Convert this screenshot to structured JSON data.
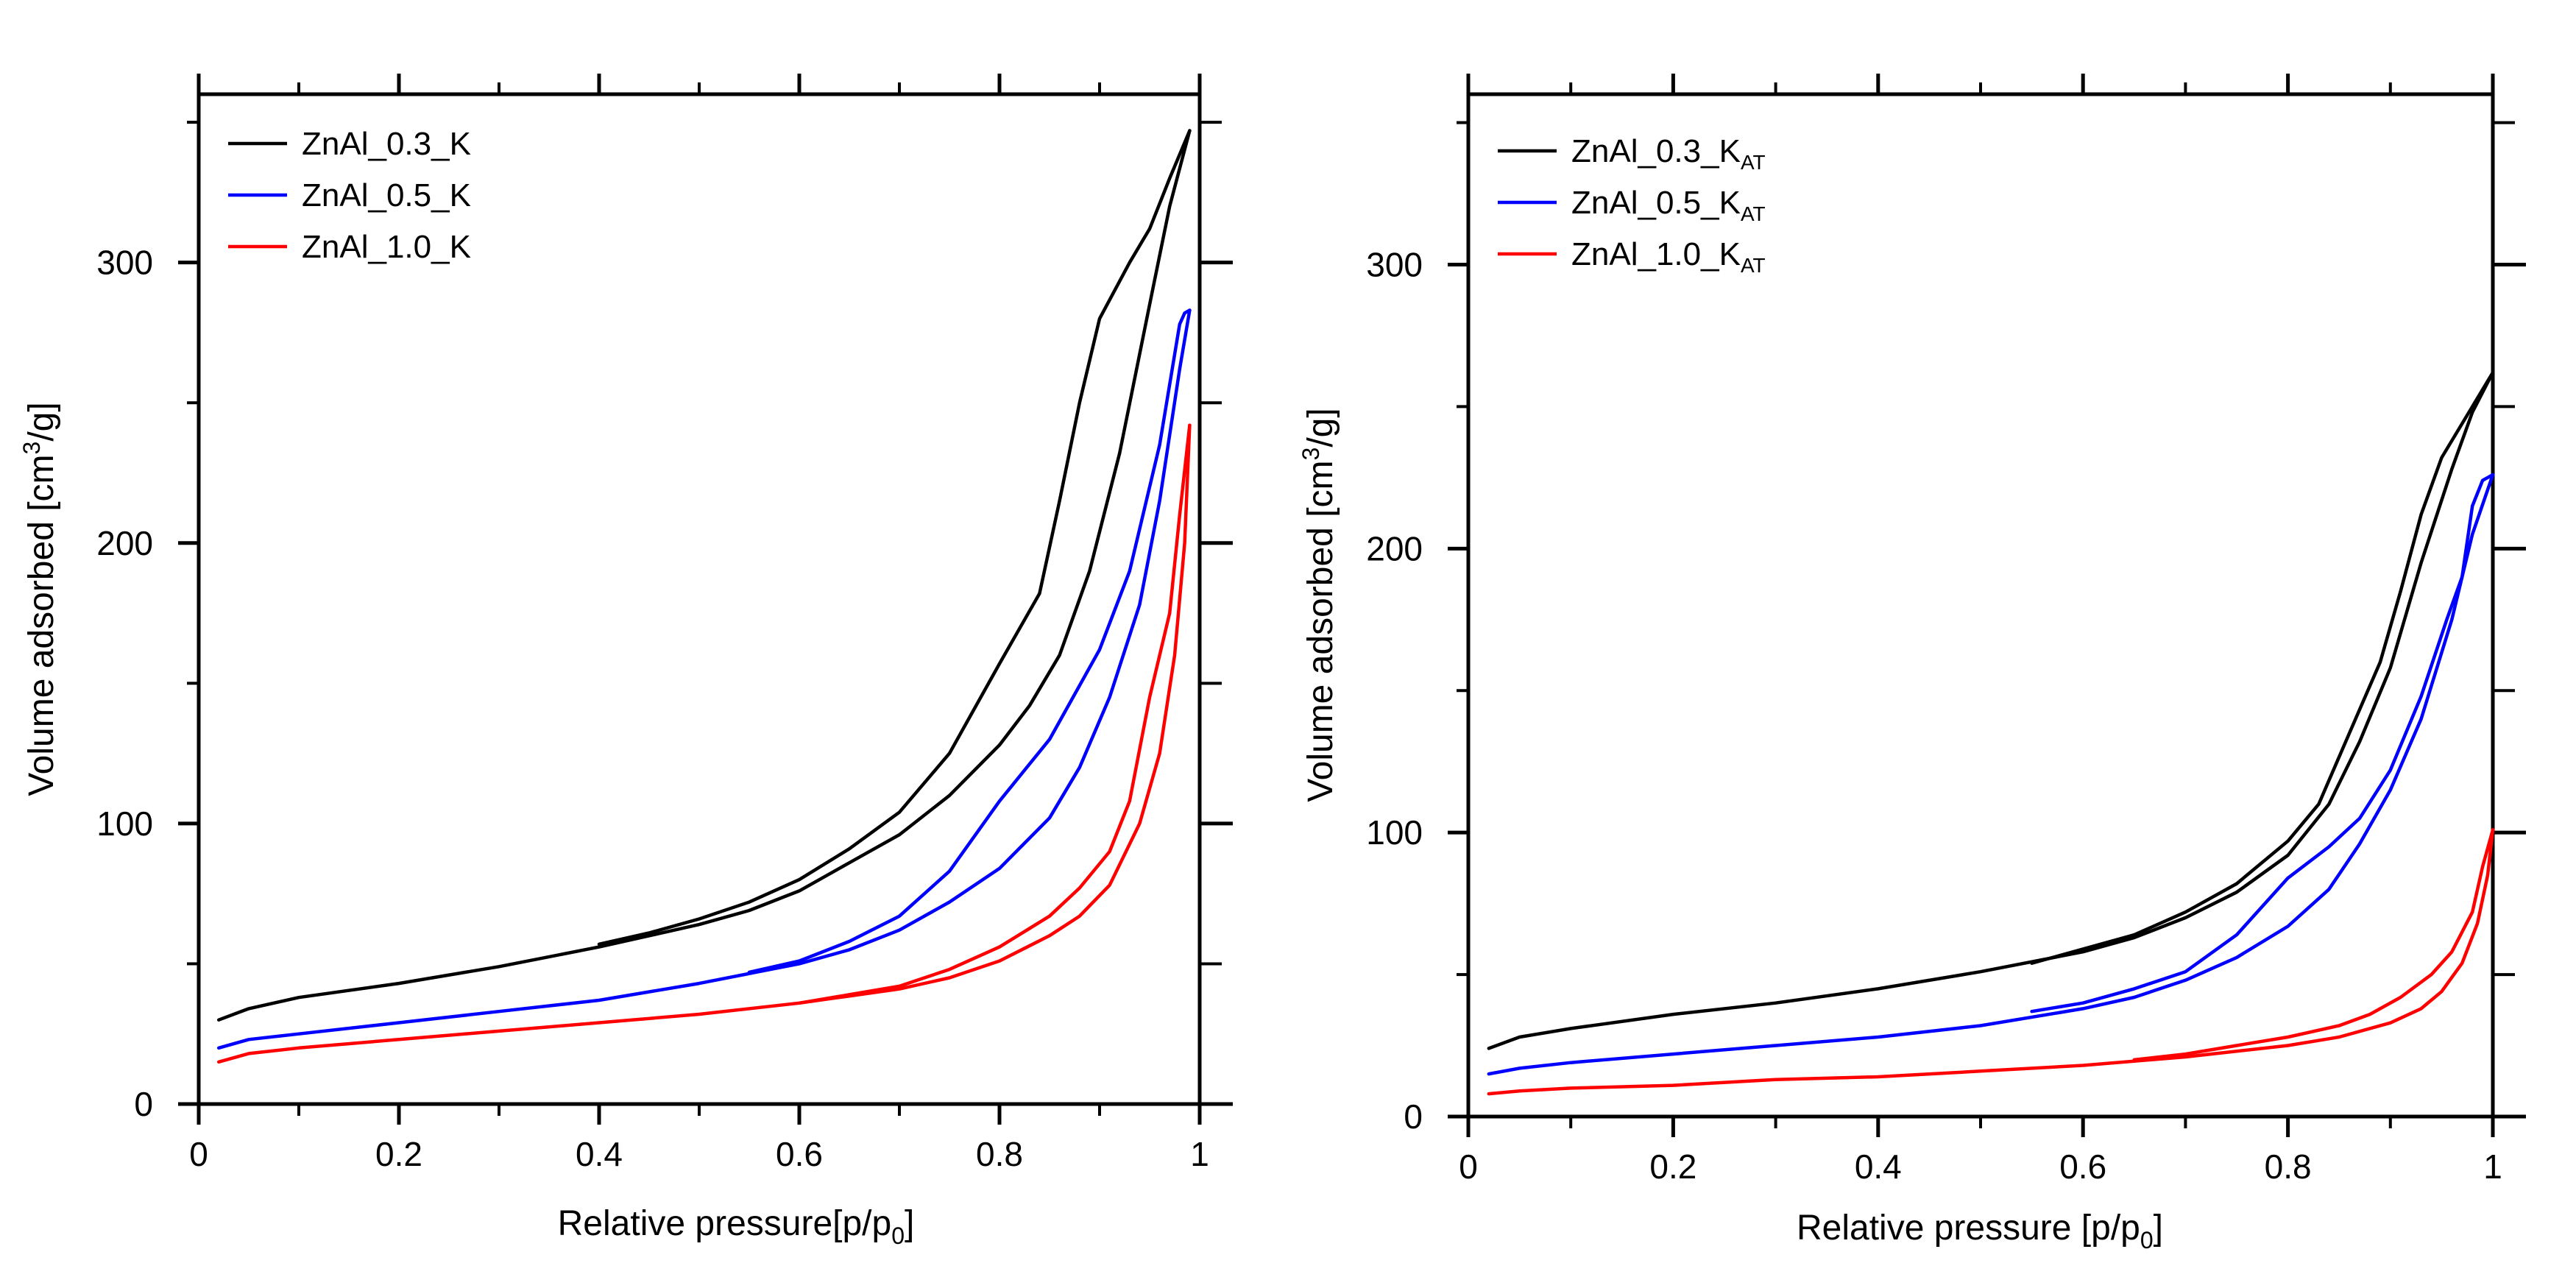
{
  "chart_data": [
    {
      "type": "line",
      "xlabel": "Relative pressure[p/p0]",
      "xlabel_main": "Relative pressure[p/p",
      "xlabel_sub": "0",
      "xlabel_tail": "]",
      "ylabel": "Volume adsorbed [cm3/g]",
      "ylabel_main": "Volume adsorbed [cm",
      "ylabel_sup": "3",
      "ylabel_tail": "/g]",
      "xlim": [
        0,
        1
      ],
      "ylim": [
        0,
        360
      ],
      "xticks": [
        0,
        0.2,
        0.4,
        0.6,
        0.8,
        1
      ],
      "xtick_labels": [
        "0",
        "0.2",
        "0.4",
        "0.6",
        "0.8",
        "1"
      ],
      "yticks": [
        0,
        100,
        200,
        300
      ],
      "ytick_labels": [
        "0",
        "100",
        "200",
        "300"
      ],
      "legend_position": "top-left",
      "series": [
        {
          "name": "ZnAl_0.3_K",
          "label_main": "ZnAl_0.3_K",
          "label_sub": "",
          "color": "#000000",
          "adsorption": [
            [
              0.02,
              30
            ],
            [
              0.05,
              34
            ],
            [
              0.1,
              38
            ],
            [
              0.2,
              43
            ],
            [
              0.3,
              49
            ],
            [
              0.4,
              56
            ],
            [
              0.5,
              64
            ],
            [
              0.55,
              69
            ],
            [
              0.6,
              76
            ],
            [
              0.65,
              86
            ],
            [
              0.7,
              96
            ],
            [
              0.75,
              110
            ],
            [
              0.8,
              128
            ],
            [
              0.83,
              142
            ],
            [
              0.86,
              160
            ],
            [
              0.89,
              190
            ],
            [
              0.92,
              232
            ],
            [
              0.95,
              285
            ],
            [
              0.97,
              320
            ],
            [
              0.99,
              347
            ]
          ],
          "desorption": [
            [
              0.99,
              347
            ],
            [
              0.97,
              330
            ],
            [
              0.95,
              312
            ],
            [
              0.93,
              300
            ],
            [
              0.9,
              280
            ],
            [
              0.88,
              250
            ],
            [
              0.86,
              215
            ],
            [
              0.84,
              182
            ],
            [
              0.8,
              157
            ],
            [
              0.75,
              125
            ],
            [
              0.7,
              104
            ],
            [
              0.65,
              91
            ],
            [
              0.6,
              80
            ],
            [
              0.55,
              72
            ],
            [
              0.5,
              66
            ],
            [
              0.45,
              61
            ],
            [
              0.4,
              57
            ]
          ]
        },
        {
          "name": "ZnAl_0.5_K",
          "label_main": "ZnAl_0.5_K",
          "label_sub": "",
          "color": "#0000ff",
          "adsorption": [
            [
              0.02,
              20
            ],
            [
              0.05,
              23
            ],
            [
              0.1,
              25
            ],
            [
              0.2,
              29
            ],
            [
              0.3,
              33
            ],
            [
              0.4,
              37
            ],
            [
              0.5,
              43
            ],
            [
              0.6,
              50
            ],
            [
              0.65,
              55
            ],
            [
              0.7,
              62
            ],
            [
              0.75,
              72
            ],
            [
              0.8,
              84
            ],
            [
              0.85,
              102
            ],
            [
              0.88,
              120
            ],
            [
              0.91,
              145
            ],
            [
              0.94,
              178
            ],
            [
              0.96,
              215
            ],
            [
              0.98,
              262
            ],
            [
              0.99,
              283
            ]
          ],
          "desorption": [
            [
              0.99,
              283
            ],
            [
              0.985,
              282
            ],
            [
              0.98,
              278
            ],
            [
              0.96,
              235
            ],
            [
              0.93,
              190
            ],
            [
              0.9,
              162
            ],
            [
              0.85,
              130
            ],
            [
              0.8,
              108
            ],
            [
              0.75,
              83
            ],
            [
              0.7,
              67
            ],
            [
              0.65,
              58
            ],
            [
              0.6,
              51
            ],
            [
              0.55,
              47
            ]
          ]
        },
        {
          "name": "ZnAl_1.0_K",
          "label_main": "ZnAl_1.0_K",
          "label_sub": "",
          "color": "#ff0000",
          "adsorption": [
            [
              0.02,
              15
            ],
            [
              0.05,
              18
            ],
            [
              0.1,
              20
            ],
            [
              0.2,
              23
            ],
            [
              0.3,
              26
            ],
            [
              0.4,
              29
            ],
            [
              0.5,
              32
            ],
            [
              0.6,
              36
            ],
            [
              0.7,
              41
            ],
            [
              0.75,
              45
            ],
            [
              0.8,
              51
            ],
            [
              0.85,
              60
            ],
            [
              0.88,
              67
            ],
            [
              0.91,
              78
            ],
            [
              0.94,
              100
            ],
            [
              0.96,
              125
            ],
            [
              0.975,
              160
            ],
            [
              0.985,
              200
            ],
            [
              0.99,
              242
            ]
          ],
          "desorption": [
            [
              0.99,
              242
            ],
            [
              0.98,
              210
            ],
            [
              0.97,
              175
            ],
            [
              0.95,
              145
            ],
            [
              0.93,
              108
            ],
            [
              0.91,
              90
            ],
            [
              0.88,
              77
            ],
            [
              0.85,
              67
            ],
            [
              0.8,
              56
            ],
            [
              0.75,
              48
            ],
            [
              0.7,
              42
            ],
            [
              0.65,
              39
            ],
            [
              0.6,
              36
            ]
          ]
        }
      ]
    },
    {
      "type": "line",
      "xlabel": "Relative pressure [p/p0]",
      "xlabel_main": "Relative pressure [p/p",
      "xlabel_sub": "0",
      "xlabel_tail": "]",
      "ylabel": "Volume adsorbed [cm3/g]",
      "ylabel_main": "Volume adsorbed [cm",
      "ylabel_sup": "3",
      "ylabel_tail": "/g]",
      "xlim": [
        0,
        1
      ],
      "ylim": [
        0,
        360
      ],
      "xticks": [
        0,
        0.2,
        0.4,
        0.6,
        0.8,
        1
      ],
      "xtick_labels": [
        "0",
        "0.2",
        "0.4",
        "0.6",
        "0.8",
        "1"
      ],
      "yticks": [
        0,
        100,
        200,
        300
      ],
      "ytick_labels": [
        "0",
        "100",
        "200",
        "300"
      ],
      "legend_position": "top-left",
      "series": [
        {
          "name": "ZnAl_0.3_KAT",
          "label_main": "ZnAl_0.3_K",
          "label_sub": "AT",
          "color": "#000000",
          "adsorption": [
            [
              0.02,
              24
            ],
            [
              0.05,
              28
            ],
            [
              0.1,
              31
            ],
            [
              0.2,
              36
            ],
            [
              0.3,
              40
            ],
            [
              0.4,
              45
            ],
            [
              0.5,
              51
            ],
            [
              0.6,
              58
            ],
            [
              0.65,
              63
            ],
            [
              0.7,
              70
            ],
            [
              0.75,
              79
            ],
            [
              0.8,
              92
            ],
            [
              0.84,
              110
            ],
            [
              0.87,
              132
            ],
            [
              0.9,
              158
            ],
            [
              0.93,
              195
            ],
            [
              0.96,
              228
            ],
            [
              0.98,
              248
            ],
            [
              1.0,
              262
            ]
          ],
          "desorption": [
            [
              1.0,
              262
            ],
            [
              0.98,
              250
            ],
            [
              0.95,
              232
            ],
            [
              0.93,
              212
            ],
            [
              0.91,
              185
            ],
            [
              0.89,
              160
            ],
            [
              0.86,
              135
            ],
            [
              0.83,
              110
            ],
            [
              0.8,
              97
            ],
            [
              0.75,
              82
            ],
            [
              0.7,
              72
            ],
            [
              0.65,
              64
            ],
            [
              0.6,
              59
            ],
            [
              0.55,
              54
            ]
          ]
        },
        {
          "name": "ZnAl_0.5_KAT",
          "label_main": "ZnAl_0.5_K",
          "label_sub": "AT",
          "color": "#0000ff",
          "adsorption": [
            [
              0.02,
              15
            ],
            [
              0.05,
              17
            ],
            [
              0.1,
              19
            ],
            [
              0.2,
              22
            ],
            [
              0.3,
              25
            ],
            [
              0.4,
              28
            ],
            [
              0.5,
              32
            ],
            [
              0.6,
              38
            ],
            [
              0.65,
              42
            ],
            [
              0.7,
              48
            ],
            [
              0.75,
              56
            ],
            [
              0.8,
              67
            ],
            [
              0.84,
              80
            ],
            [
              0.87,
              96
            ],
            [
              0.9,
              115
            ],
            [
              0.93,
              140
            ],
            [
              0.96,
              175
            ],
            [
              0.98,
              205
            ],
            [
              1.0,
              226
            ]
          ],
          "desorption": [
            [
              1.0,
              226
            ],
            [
              0.99,
              224
            ],
            [
              0.98,
              215
            ],
            [
              0.97,
              190
            ],
            [
              0.955,
              175
            ],
            [
              0.93,
              148
            ],
            [
              0.9,
              122
            ],
            [
              0.87,
              105
            ],
            [
              0.84,
              95
            ],
            [
              0.8,
              84
            ],
            [
              0.75,
              64
            ],
            [
              0.7,
              51
            ],
            [
              0.65,
              45
            ],
            [
              0.6,
              40
            ],
            [
              0.55,
              37
            ]
          ]
        },
        {
          "name": "ZnAl_1.0_KAT",
          "label_main": "ZnAl_1.0_K",
          "label_sub": "AT",
          "color": "#ff0000",
          "adsorption": [
            [
              0.02,
              8
            ],
            [
              0.05,
              9
            ],
            [
              0.1,
              10
            ],
            [
              0.2,
              11
            ],
            [
              0.3,
              13
            ],
            [
              0.4,
              14
            ],
            [
              0.5,
              16
            ],
            [
              0.6,
              18
            ],
            [
              0.7,
              21
            ],
            [
              0.8,
              25
            ],
            [
              0.85,
              28
            ],
            [
              0.9,
              33
            ],
            [
              0.93,
              38
            ],
            [
              0.95,
              44
            ],
            [
              0.97,
              54
            ],
            [
              0.985,
              68
            ],
            [
              0.995,
              85
            ],
            [
              1.0,
              101
            ]
          ],
          "desorption": [
            [
              1.0,
              101
            ],
            [
              0.99,
              88
            ],
            [
              0.98,
              72
            ],
            [
              0.96,
              58
            ],
            [
              0.94,
              50
            ],
            [
              0.91,
              42
            ],
            [
              0.88,
              36
            ],
            [
              0.85,
              32
            ],
            [
              0.8,
              28
            ],
            [
              0.75,
              25
            ],
            [
              0.7,
              22
            ],
            [
              0.65,
              20
            ]
          ]
        }
      ]
    }
  ]
}
